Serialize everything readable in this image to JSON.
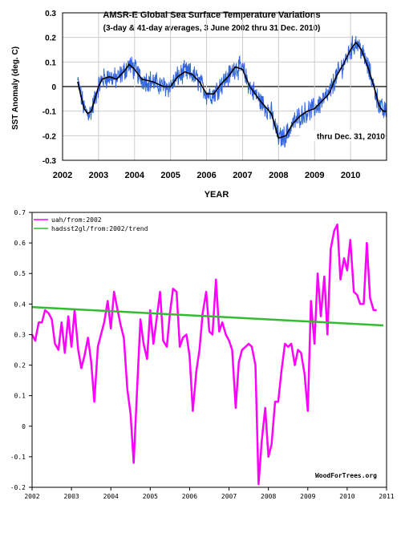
{
  "chart_data": [
    {
      "type": "line",
      "title": "AMSR-E Global Sea Surface Temperature Variations",
      "subtitle": "(3-day & 41-day averages, 3 June 2002 thru 31 Dec. 2010)",
      "xlabel": "YEAR",
      "ylabel": "SST Anomaly (deg. C)",
      "annotation": "thru Dec. 31, 2010",
      "xlim": [
        2002,
        2011
      ],
      "ylim": [
        -0.3,
        0.3
      ],
      "x_ticks": [
        2002,
        2003,
        2004,
        2005,
        2006,
        2007,
        2008,
        2009,
        2010
      ],
      "y_ticks": [
        "-0.3",
        "-0.2",
        "-0.1",
        "0",
        "0.1",
        "0.2",
        "0.3"
      ],
      "grid": true,
      "colors": {
        "daily": "#3366dd",
        "smooth": "#000000"
      },
      "smooth_points": [
        [
          2002.42,
          0.02
        ],
        [
          2002.5,
          -0.03
        ],
        [
          2002.6,
          -0.09
        ],
        [
          2002.7,
          -0.11
        ],
        [
          2002.8,
          -0.1
        ],
        [
          2002.9,
          -0.05
        ],
        [
          2003.0,
          0.0
        ],
        [
          2003.1,
          0.03
        ],
        [
          2003.3,
          0.04
        ],
        [
          2003.5,
          0.03
        ],
        [
          2003.7,
          0.06
        ],
        [
          2003.85,
          0.09
        ],
        [
          2004.0,
          0.07
        ],
        [
          2004.2,
          0.03
        ],
        [
          2004.5,
          0.02
        ],
        [
          2004.8,
          0.0
        ],
        [
          2005.0,
          0.0
        ],
        [
          2005.2,
          0.04
        ],
        [
          2005.4,
          0.06
        ],
        [
          2005.6,
          0.05
        ],
        [
          2005.8,
          0.02
        ],
        [
          2006.0,
          -0.03
        ],
        [
          2006.2,
          -0.03
        ],
        [
          2006.4,
          0.01
        ],
        [
          2006.6,
          0.04
        ],
        [
          2006.8,
          0.08
        ],
        [
          2007.0,
          0.07
        ],
        [
          2007.2,
          0.0
        ],
        [
          2007.5,
          -0.06
        ],
        [
          2007.8,
          -0.11
        ],
        [
          2008.0,
          -0.21
        ],
        [
          2008.2,
          -0.2
        ],
        [
          2008.4,
          -0.15
        ],
        [
          2008.6,
          -0.12
        ],
        [
          2008.8,
          -0.1
        ],
        [
          2009.0,
          -0.09
        ],
        [
          2009.2,
          -0.06
        ],
        [
          2009.4,
          -0.03
        ],
        [
          2009.6,
          0.04
        ],
        [
          2009.8,
          0.09
        ],
        [
          2010.0,
          0.15
        ],
        [
          2010.15,
          0.18
        ],
        [
          2010.3,
          0.15
        ],
        [
          2010.5,
          0.07
        ],
        [
          2010.65,
          0.0
        ],
        [
          2010.8,
          -0.08
        ],
        [
          2010.9,
          -0.1
        ],
        [
          2011.0,
          -0.1
        ]
      ]
    },
    {
      "type": "line",
      "xlim": [
        2002,
        2011
      ],
      "ylim": [
        -0.2,
        0.7
      ],
      "x_ticks": [
        2002,
        2003,
        2004,
        2005,
        2006,
        2007,
        2008,
        2009,
        2010,
        2011
      ],
      "y_ticks": [
        "-0.2",
        "-0.1",
        "0",
        "0.1",
        "0.2",
        "0.3",
        "0.4",
        "0.5",
        "0.6",
        "0.7"
      ],
      "grid": false,
      "watermark": "WoodForTrees.org",
      "legend_position": "top-left",
      "series": [
        {
          "name": "uah/from:2002",
          "color": "#ff00ff",
          "points": [
            [
              2002.0,
              0.3
            ],
            [
              2002.08,
              0.28
            ],
            [
              2002.17,
              0.34
            ],
            [
              2002.25,
              0.34
            ],
            [
              2002.33,
              0.38
            ],
            [
              2002.42,
              0.37
            ],
            [
              2002.5,
              0.35
            ],
            [
              2002.58,
              0.27
            ],
            [
              2002.67,
              0.25
            ],
            [
              2002.75,
              0.34
            ],
            [
              2002.83,
              0.24
            ],
            [
              2002.92,
              0.36
            ],
            [
              2003.0,
              0.26
            ],
            [
              2003.08,
              0.38
            ],
            [
              2003.17,
              0.25
            ],
            [
              2003.25,
              0.19
            ],
            [
              2003.33,
              0.23
            ],
            [
              2003.42,
              0.29
            ],
            [
              2003.5,
              0.21
            ],
            [
              2003.58,
              0.08
            ],
            [
              2003.67,
              0.26
            ],
            [
              2003.75,
              0.3
            ],
            [
              2003.83,
              0.34
            ],
            [
              2003.92,
              0.41
            ],
            [
              2004.0,
              0.32
            ],
            [
              2004.08,
              0.44
            ],
            [
              2004.17,
              0.38
            ],
            [
              2004.25,
              0.33
            ],
            [
              2004.33,
              0.29
            ],
            [
              2004.42,
              0.12
            ],
            [
              2004.5,
              0.04
            ],
            [
              2004.58,
              -0.12
            ],
            [
              2004.67,
              0.13
            ],
            [
              2004.75,
              0.35
            ],
            [
              2004.83,
              0.27
            ],
            [
              2004.92,
              0.22
            ],
            [
              2005.0,
              0.38
            ],
            [
              2005.08,
              0.27
            ],
            [
              2005.17,
              0.36
            ],
            [
              2005.25,
              0.44
            ],
            [
              2005.33,
              0.28
            ],
            [
              2005.42,
              0.26
            ],
            [
              2005.5,
              0.37
            ],
            [
              2005.58,
              0.45
            ],
            [
              2005.67,
              0.44
            ],
            [
              2005.75,
              0.26
            ],
            [
              2005.83,
              0.29
            ],
            [
              2005.92,
              0.3
            ],
            [
              2006.0,
              0.23
            ],
            [
              2006.08,
              0.05
            ],
            [
              2006.17,
              0.18
            ],
            [
              2006.25,
              0.25
            ],
            [
              2006.33,
              0.37
            ],
            [
              2006.42,
              0.44
            ],
            [
              2006.5,
              0.31
            ],
            [
              2006.58,
              0.3
            ],
            [
              2006.67,
              0.48
            ],
            [
              2006.75,
              0.31
            ],
            [
              2006.83,
              0.34
            ],
            [
              2006.92,
              0.3
            ],
            [
              2007.0,
              0.28
            ],
            [
              2007.08,
              0.25
            ],
            [
              2007.17,
              0.06
            ],
            [
              2007.25,
              0.21
            ],
            [
              2007.33,
              0.25
            ],
            [
              2007.42,
              0.26
            ],
            [
              2007.5,
              0.27
            ],
            [
              2007.58,
              0.26
            ],
            [
              2007.67,
              0.2
            ],
            [
              2007.75,
              -0.19
            ],
            [
              2007.83,
              -0.05
            ],
            [
              2007.92,
              0.06
            ],
            [
              2008.0,
              -0.1
            ],
            [
              2008.08,
              -0.06
            ],
            [
              2008.17,
              0.08
            ],
            [
              2008.25,
              0.08
            ],
            [
              2008.33,
              0.18
            ],
            [
              2008.42,
              0.27
            ],
            [
              2008.5,
              0.26
            ],
            [
              2008.58,
              0.27
            ],
            [
              2008.67,
              0.2
            ],
            [
              2008.75,
              0.25
            ],
            [
              2008.83,
              0.24
            ],
            [
              2008.92,
              0.17
            ],
            [
              2009.0,
              0.05
            ],
            [
              2009.08,
              0.41
            ],
            [
              2009.17,
              0.27
            ],
            [
              2009.25,
              0.5
            ],
            [
              2009.33,
              0.36
            ],
            [
              2009.42,
              0.49
            ],
            [
              2009.5,
              0.3
            ],
            [
              2009.58,
              0.58
            ],
            [
              2009.67,
              0.64
            ],
            [
              2009.75,
              0.66
            ],
            [
              2009.83,
              0.48
            ],
            [
              2009.92,
              0.55
            ],
            [
              2010.0,
              0.51
            ],
            [
              2010.08,
              0.61
            ],
            [
              2010.17,
              0.44
            ],
            [
              2010.25,
              0.43
            ],
            [
              2010.33,
              0.4
            ],
            [
              2010.42,
              0.4
            ],
            [
              2010.5,
              0.6
            ],
            [
              2010.58,
              0.42
            ],
            [
              2010.67,
              0.38
            ],
            [
              2010.75,
              0.38
            ]
          ]
        },
        {
          "name": "hadsst2gl/from:2002/trend",
          "color": "#33bb33",
          "points": [
            [
              2002.0,
              0.39
            ],
            [
              2010.92,
              0.33
            ]
          ]
        }
      ]
    }
  ]
}
